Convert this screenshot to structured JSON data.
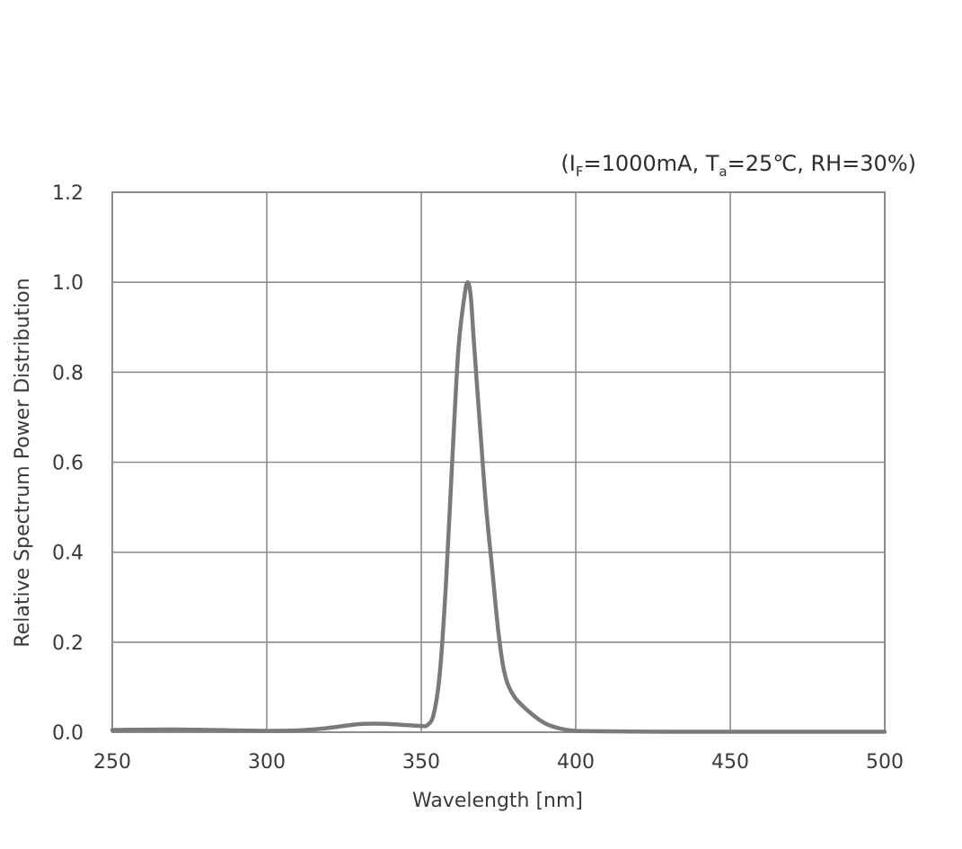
{
  "chart_data": {
    "type": "line",
    "title": "",
    "conditions": {
      "prefix": "(I",
      "if_sub": "F",
      "if_value": "=1000mA, T",
      "ta_sub": "a",
      "ta_value": "=25℃, RH=30%)"
    },
    "xlabel": "Wavelength [nm]",
    "ylabel": "Relative Spectrum Power Distribution",
    "xlim": [
      250,
      500
    ],
    "ylim": [
      0,
      1.2
    ],
    "x_ticks": [
      "250",
      "300",
      "350",
      "400",
      "450",
      "500"
    ],
    "y_ticks": [
      "0.0",
      "0.2",
      "0.4",
      "0.6",
      "0.8",
      "1.0",
      "1.2"
    ],
    "grid": true,
    "legend": "none",
    "line_color": "#7a7a7a",
    "series": [
      {
        "x": [
          250,
          270,
          290,
          300,
          310,
          318,
          325,
          330,
          335,
          340,
          345,
          350,
          352,
          354,
          356,
          358,
          360,
          362,
          364,
          365,
          366,
          367,
          369,
          371,
          373,
          375,
          377,
          380,
          385,
          390,
          395,
          400,
          410,
          430,
          450,
          500
        ],
        "y": [
          0.005,
          0.006,
          0.004,
          0.003,
          0.004,
          0.008,
          0.014,
          0.018,
          0.019,
          0.018,
          0.016,
          0.014,
          0.016,
          0.04,
          0.13,
          0.33,
          0.6,
          0.85,
          0.97,
          1.0,
          0.97,
          0.87,
          0.68,
          0.5,
          0.36,
          0.22,
          0.13,
          0.08,
          0.045,
          0.02,
          0.008,
          0.003,
          0.002,
          0.001,
          0.001,
          0.001
        ]
      }
    ]
  }
}
